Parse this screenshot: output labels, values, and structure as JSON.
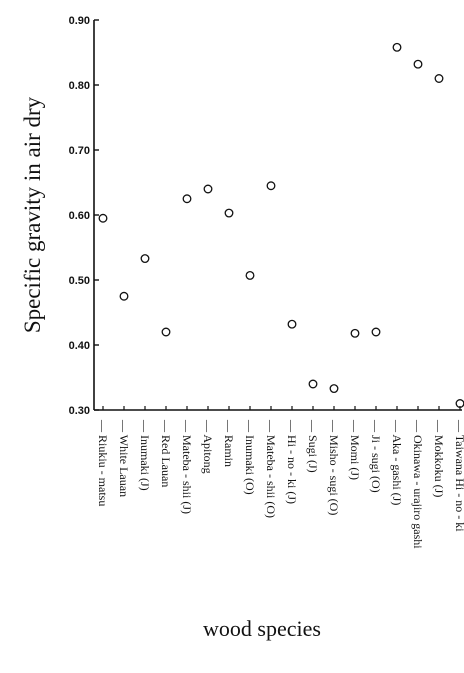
{
  "chart_data": {
    "type": "scatter",
    "xlabel": "wood species",
    "ylabel": "Specific gravity in air dry",
    "ylim": [
      0.3,
      0.9
    ],
    "yticks": [
      "0.30",
      "0.40",
      "0.50",
      "0.60",
      "0.70",
      "0.80",
      "0.90"
    ],
    "grid": false,
    "marker": "open-circle",
    "categories": [
      "Riukiu - matsu",
      "White Lauan",
      "Inumaki (J)",
      "Red Lauan",
      "Mateba - shii (J)",
      "Apitong",
      "Ramin",
      "Inumaki (O)",
      "Mateba - shii (O)",
      "Hi - no - ki (J)",
      "Sugi (J)",
      "Misho - sugi (O)",
      "Momi (J)",
      "Ji - sugi (O)",
      "Aka - gashi (J)",
      "Okinawa - urajiro gashi",
      "Mokkoku (J)",
      "Taiwana Hi - no - ki"
    ],
    "values": [
      0.595,
      0.475,
      0.533,
      0.42,
      0.625,
      0.64,
      0.603,
      0.507,
      0.645,
      0.432,
      0.34,
      0.333,
      0.418,
      0.42,
      0.858,
      0.832,
      0.81,
      0.31
    ]
  }
}
